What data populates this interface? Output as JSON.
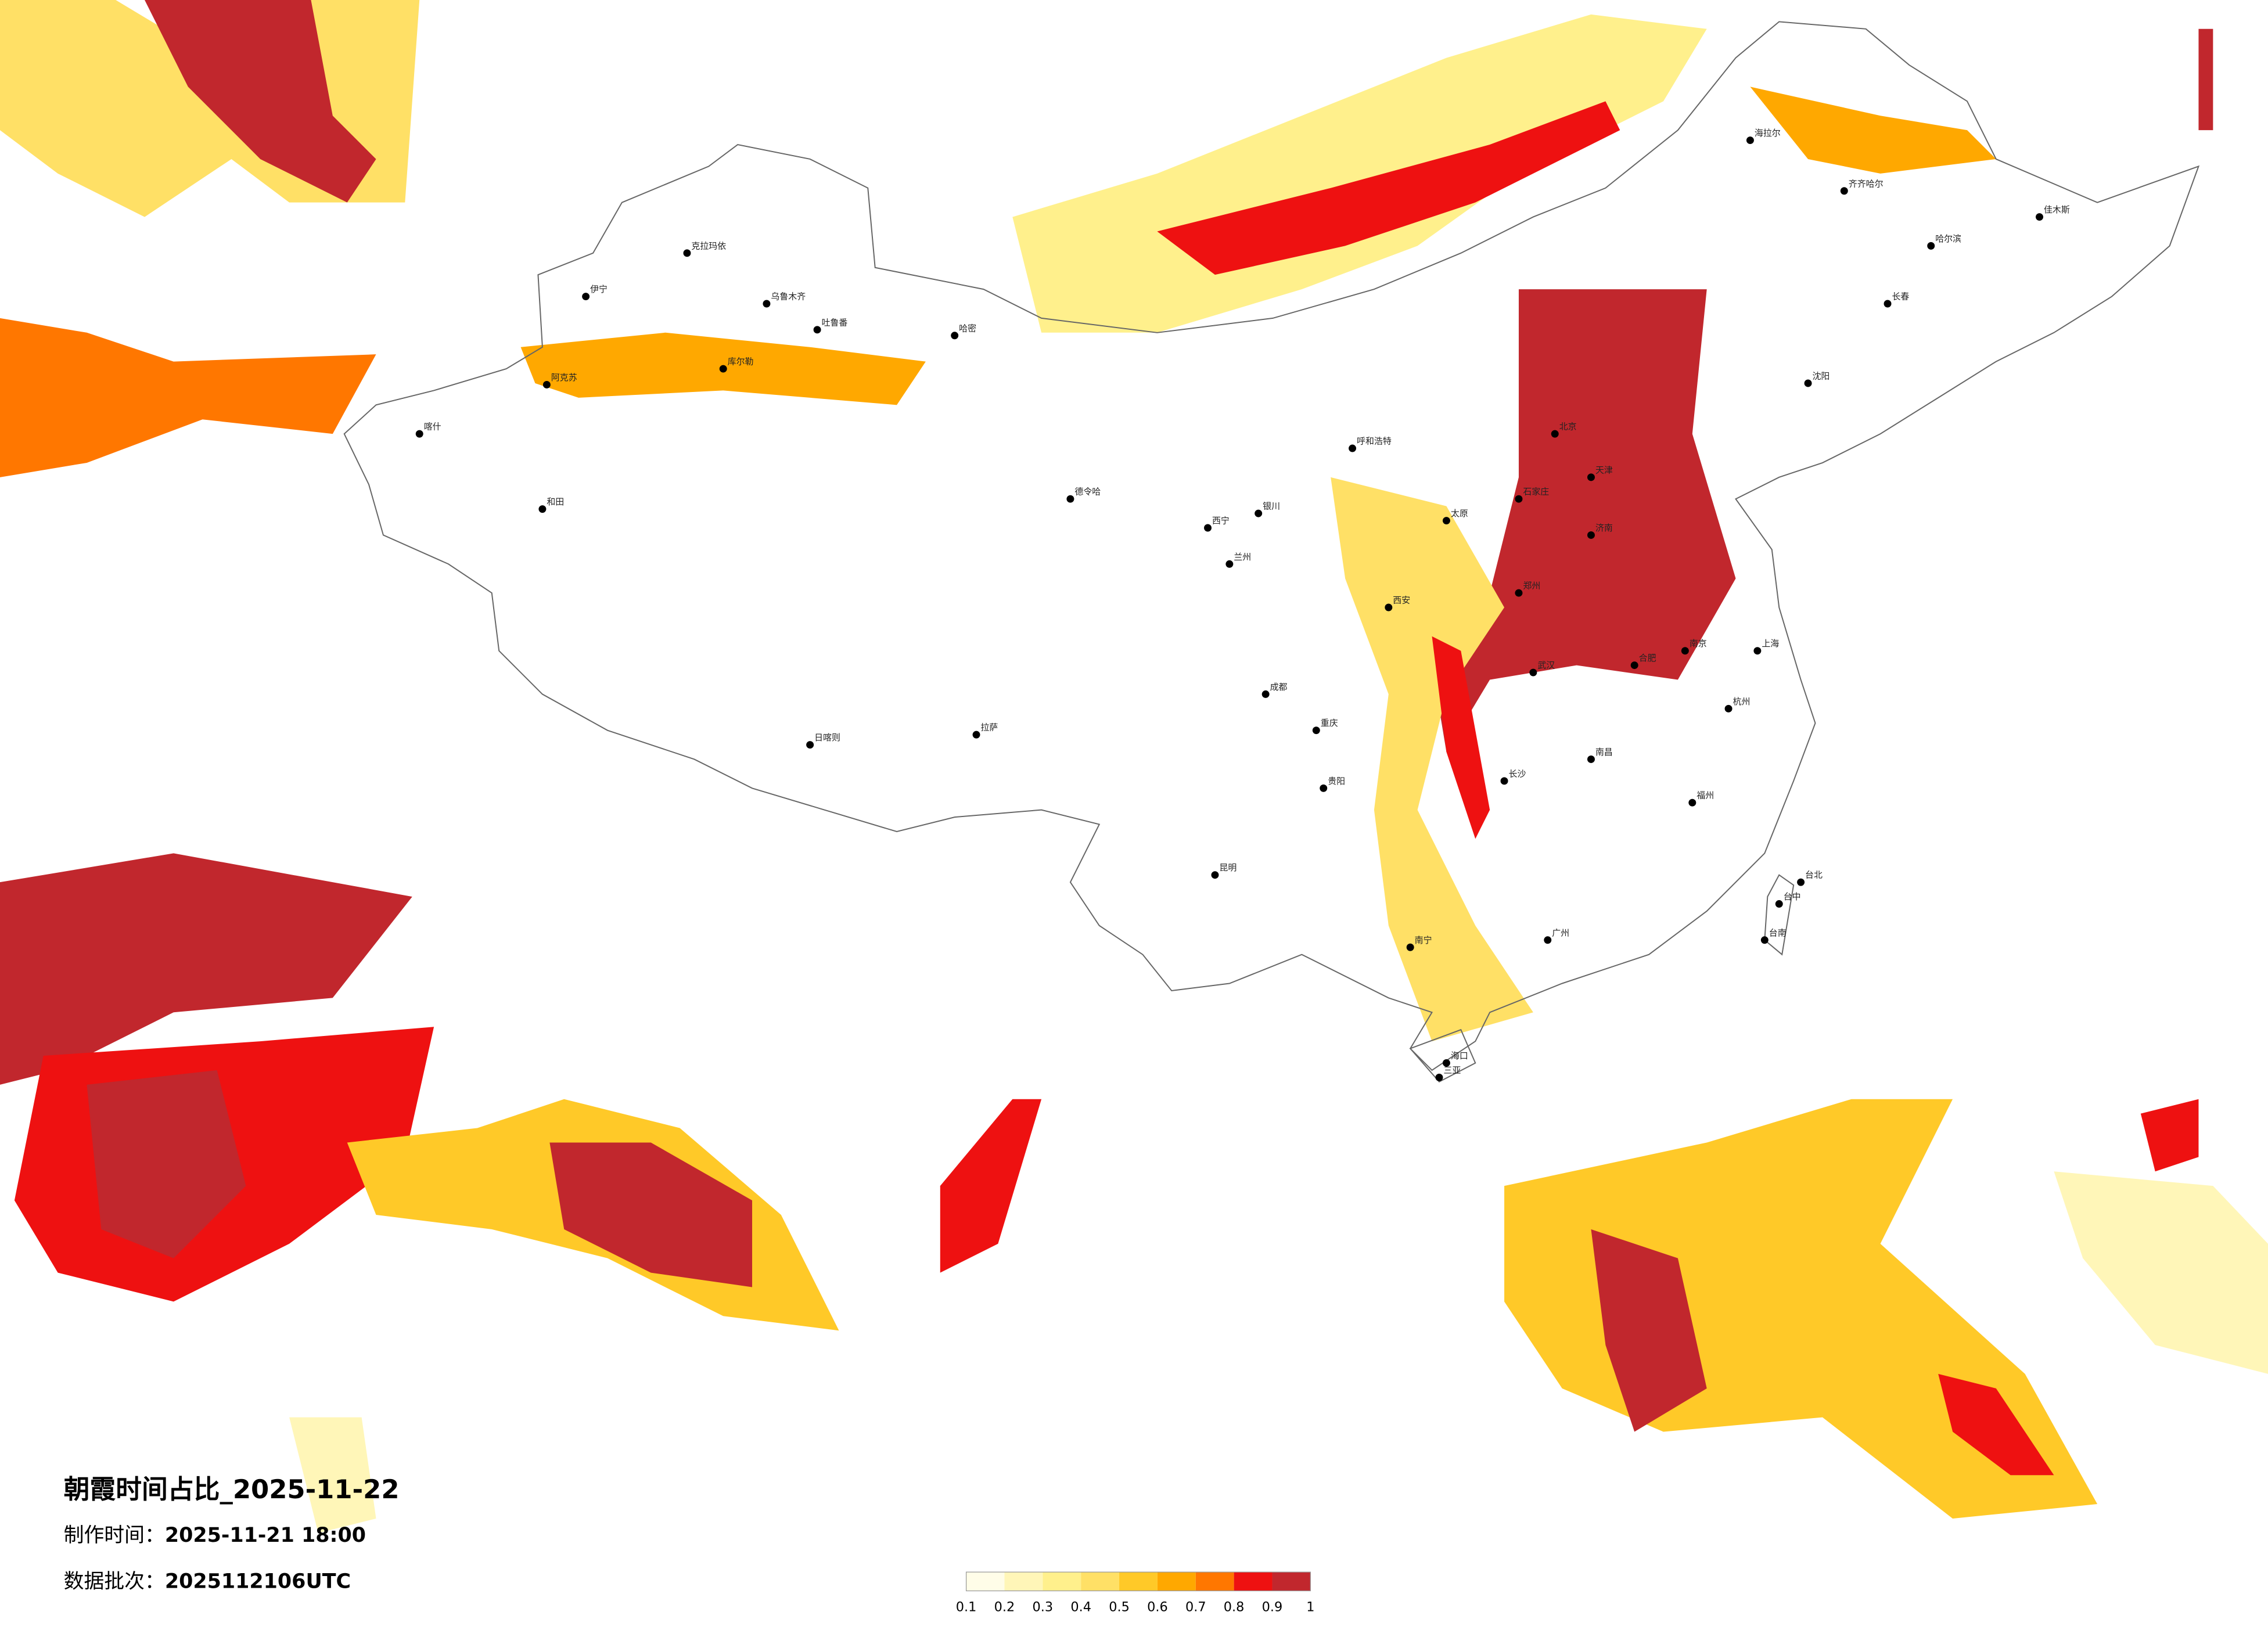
{
  "title": "朝霞时间占比_2025-11-22",
  "made_time": {
    "label": "制作时间：",
    "value": "2025-11-21 18:00"
  },
  "batch": {
    "label": "数据批次：",
    "value": "2025112106UTC"
  },
  "legend": {
    "colors": [
      "#fffde8",
      "#fff6b8",
      "#fff08c",
      "#ffe066",
      "#ffc928",
      "#ffa800",
      "#ff7700",
      "#ee1111",
      "#c1272d"
    ],
    "ticks": [
      0.1,
      0.2,
      0.3,
      0.4,
      0.5,
      0.6,
      0.7,
      0.8,
      0.9,
      1
    ]
  },
  "cities": [
    "克拉玛依",
    "伊宁",
    "乌鲁木齐",
    "吐鲁番",
    "哈密",
    "阿克苏",
    "喀什",
    "和田",
    "库尔勒",
    "德令哈",
    "西宁",
    "兰州",
    "银川",
    "呼和浩特",
    "北京",
    "天津",
    "石家庄",
    "太原",
    "济南",
    "郑州",
    "西安",
    "武汉",
    "长沙",
    "南昌",
    "合肥",
    "南京",
    "上海",
    "杭州",
    "福州",
    "广州",
    "南宁",
    "海口",
    "贵阳",
    "昆明",
    "成都",
    "重庆",
    "拉萨",
    "日喀则",
    "沈阳",
    "长春",
    "哈尔滨",
    "齐齐哈尔",
    "海拉尔",
    "佳木斯",
    "台北",
    "台中",
    "台南",
    "三亚"
  ]
}
